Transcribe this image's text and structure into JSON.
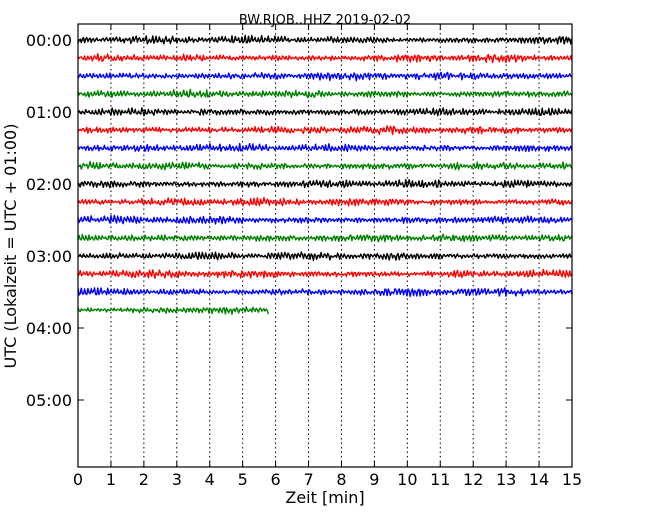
{
  "chart_data": {
    "type": "line",
    "title": "BW.RJOB..HHZ 2019-02-02",
    "xlabel": "Zeit  [min]",
    "ylabel": "UTC (Lokalzeit = UTC + 01:00)",
    "xlim": [
      0,
      15
    ],
    "x_ticks": [
      "0",
      "1",
      "2",
      "3",
      "4",
      "5",
      "6",
      "7",
      "8",
      "9",
      "10",
      "11",
      "12",
      "13",
      "14",
      "15"
    ],
    "y_ticks": [
      "00:00",
      "01:00",
      "02:00",
      "03:00",
      "04:00",
      "05:00"
    ],
    "ylim_hours": [
      0,
      6
    ],
    "grid": "vertical-dotted",
    "trace_interval_minutes": 15,
    "colors": [
      "#000000",
      "#ff0000",
      "#0000ff",
      "#008000"
    ],
    "series": [
      {
        "start": "00:00",
        "color": "#000000",
        "duration_min": 15
      },
      {
        "start": "00:15",
        "color": "#ff0000",
        "duration_min": 15
      },
      {
        "start": "00:30",
        "color": "#0000ff",
        "duration_min": 15
      },
      {
        "start": "00:45",
        "color": "#008000",
        "duration_min": 15
      },
      {
        "start": "01:00",
        "color": "#000000",
        "duration_min": 15
      },
      {
        "start": "01:15",
        "color": "#ff0000",
        "duration_min": 15
      },
      {
        "start": "01:30",
        "color": "#0000ff",
        "duration_min": 15
      },
      {
        "start": "01:45",
        "color": "#008000",
        "duration_min": 15
      },
      {
        "start": "02:00",
        "color": "#000000",
        "duration_min": 15
      },
      {
        "start": "02:15",
        "color": "#ff0000",
        "duration_min": 15
      },
      {
        "start": "02:30",
        "color": "#0000ff",
        "duration_min": 15
      },
      {
        "start": "02:45",
        "color": "#008000",
        "duration_min": 15
      },
      {
        "start": "03:00",
        "color": "#000000",
        "duration_min": 15
      },
      {
        "start": "03:15",
        "color": "#ff0000",
        "duration_min": 15
      },
      {
        "start": "03:30",
        "color": "#0000ff",
        "duration_min": 15
      },
      {
        "start": "03:45",
        "color": "#008000",
        "duration_min": 5.8
      }
    ]
  }
}
